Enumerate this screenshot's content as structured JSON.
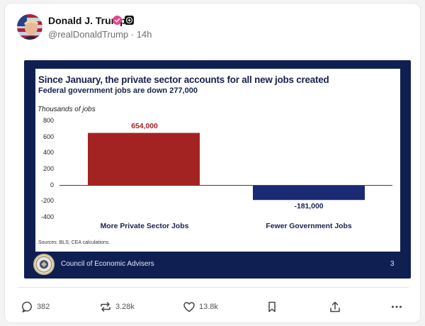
{
  "post": {
    "author_name": "Donald J. Trump",
    "handle": "@realDonaldTrump",
    "separator": "·",
    "time": "14h"
  },
  "image": {
    "title": "Since January, the private sector accounts for all new jobs created",
    "subtitle": "Federal government jobs are down 277,000",
    "units_label": "Thousands of jobs",
    "sources": "Sources: BLS; CEA calculations.",
    "footer_org": "Council of Economic Advisers",
    "page_number": "3"
  },
  "chart_data": {
    "type": "bar",
    "title": "Since January, the private sector accounts for all new jobs created",
    "subtitle": "Federal government jobs are down 277,000",
    "ylabel": "Thousands of jobs",
    "categories": [
      "More Private Sector Jobs",
      "Fewer Government Jobs"
    ],
    "values": [
      654,
      -181
    ],
    "data_labels": [
      "654,000",
      "-181,000"
    ],
    "bar_colors": [
      "#a32323",
      "#1c2a74"
    ],
    "ylim": [
      -400,
      800
    ],
    "yticks": [
      800,
      600,
      400,
      200,
      0,
      -200,
      -400
    ],
    "ytick_labels": [
      "800",
      "600",
      "400",
      "200",
      "0",
      "-200",
      "-400"
    ],
    "grid": false,
    "legend": "none"
  },
  "actions": {
    "replies": "382",
    "reposts": "3.28k",
    "likes": "13.8k"
  },
  "colors": {
    "navy": "#0f1f52",
    "title_navy": "#17224d",
    "private_red": "#a32323",
    "government_navy": "#1c2a74",
    "verified_pink": "#e8478b"
  }
}
